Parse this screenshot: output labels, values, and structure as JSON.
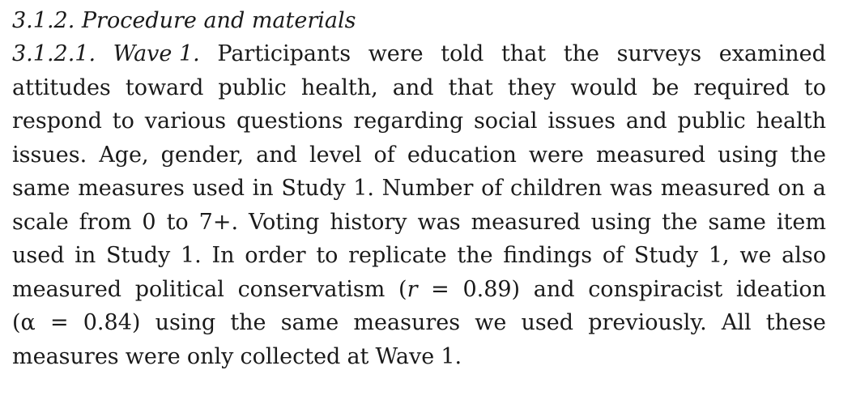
{
  "section": {
    "number": "3.1.2.",
    "title": "Procedure and materials"
  },
  "subsection": {
    "number": "3.1.2.1.",
    "title": "Wave 1."
  },
  "paragraph_lines": [
    [
      "Participants",
      "were",
      "told",
      "that",
      "the",
      "surveys",
      "examined"
    ],
    [
      "attitudes",
      "toward",
      "public",
      "health,",
      "and",
      "that",
      "they",
      "would",
      "be",
      "required",
      "to"
    ],
    [
      "respond",
      "to",
      "various",
      "questions",
      "regarding",
      "social",
      "issues",
      "and",
      "public",
      "health"
    ],
    [
      "issues.",
      "Age,",
      "gender,",
      "and",
      "level",
      "of",
      "education",
      "were",
      "measured",
      "using",
      "the"
    ],
    [
      "same",
      "measures",
      "used",
      "in",
      "Study",
      "1.",
      "Number",
      "of",
      "children",
      "was",
      "measured",
      "on",
      "a"
    ],
    [
      "scale",
      "from",
      "0",
      "to",
      "7+.",
      "Voting",
      "history",
      "was",
      "measured",
      "using",
      "the",
      "same",
      "item"
    ],
    [
      "used",
      "in",
      "Study",
      "1.",
      "In",
      "order",
      "to",
      "replicate",
      "the",
      "findings",
      "of",
      "Study",
      "1,",
      "we",
      "also"
    ],
    [
      "measured",
      "political",
      "conservatism",
      "(r",
      "=",
      "0.89)",
      "and",
      "conspiracist",
      "ideation"
    ],
    [
      "(α",
      "=",
      "0.84)",
      "using",
      "the",
      "same",
      "measures",
      "we",
      "used",
      "previously.",
      "All",
      "these"
    ],
    [
      "measures",
      "were",
      "only",
      "collected",
      "at",
      "Wave",
      "1."
    ]
  ]
}
